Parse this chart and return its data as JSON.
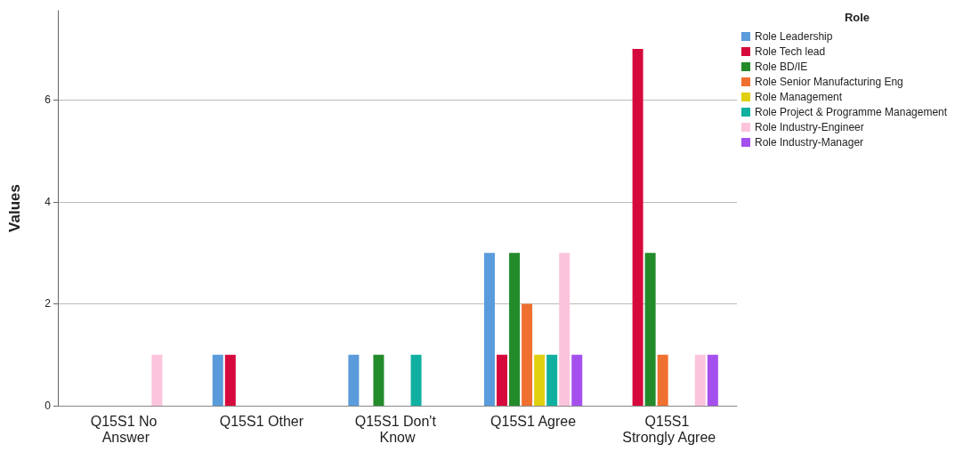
{
  "chart_data": {
    "type": "bar",
    "ylabel": "Values",
    "legend_title": "Role",
    "categories": [
      "Q15S1 No Answer",
      "Q15S1 Other",
      "Q15S1 Don't Know",
      "Q15S1 Agree",
      "Q15S1 Strongly Agree"
    ],
    "series": [
      {
        "name": "Role Leadership",
        "color": "#5a9bdc",
        "values": [
          0,
          1,
          1,
          3,
          0
        ]
      },
      {
        "name": "Role Tech lead",
        "color": "#d6093c",
        "values": [
          0,
          1,
          0,
          1,
          7
        ]
      },
      {
        "name": "Role BD/IE",
        "color": "#238b2a",
        "values": [
          0,
          0,
          1,
          3,
          3
        ]
      },
      {
        "name": "Role Senior Manufacturing Eng",
        "color": "#f07030",
        "values": [
          0,
          0,
          0,
          2,
          1
        ]
      },
      {
        "name": "Role Management",
        "color": "#e0d010",
        "values": [
          0,
          0,
          0,
          1,
          0
        ]
      },
      {
        "name": "Role Project & Programme Management",
        "color": "#10b0a0",
        "values": [
          0,
          0,
          1,
          1,
          0
        ]
      },
      {
        "name": "Role Industry-Engineer",
        "color": "#fcc4dc",
        "values": [
          1,
          0,
          0,
          3,
          1
        ]
      },
      {
        "name": "Role Industry-Manager",
        "color": "#a550ee",
        "values": [
          0,
          0,
          0,
          1,
          1
        ]
      }
    ],
    "ylim": [
      0,
      7.75
    ],
    "yticks": [
      0,
      2,
      4,
      6
    ],
    "grid": "y",
    "legend": "top right"
  }
}
